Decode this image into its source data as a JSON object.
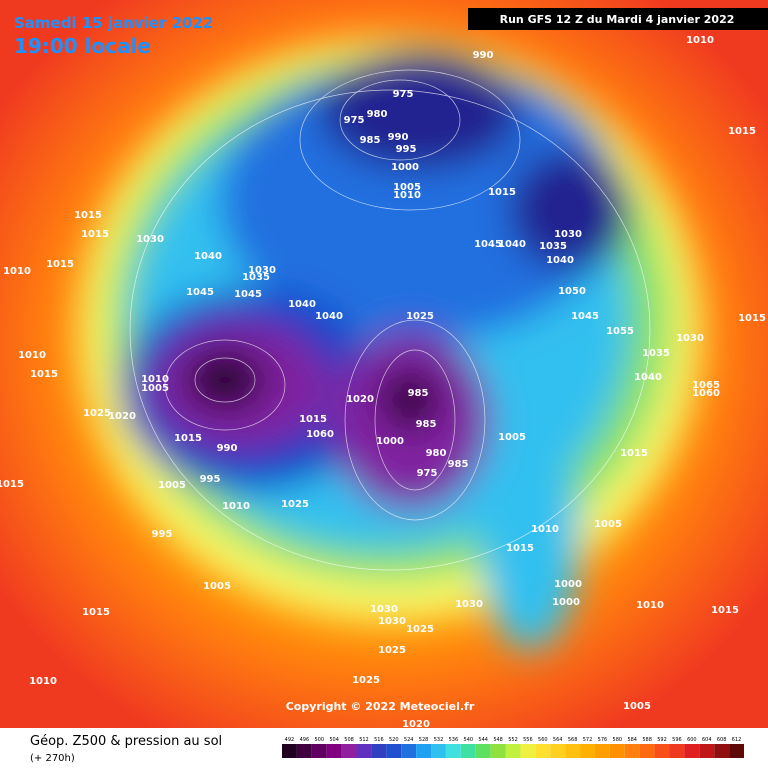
{
  "header": {
    "date": "Samedi 15 janvier 2022",
    "time": "19:00 locale",
    "run": "Run GFS 12 Z du Mardi 4 janvier 2022"
  },
  "footer": {
    "title": "Géop. Z500 & pression au sol",
    "lead": "(+ 270h)",
    "copyright": "Copyright © 2022 Meteociel.fr"
  },
  "map": {
    "pressure_labels": [
      "990",
      "1010",
      "975",
      "980",
      "975",
      "985",
      "990",
      "995",
      "1000",
      "1005",
      "1010",
      "1015",
      "1015",
      "1015",
      "1015",
      "1030",
      "1010",
      "1015",
      "1040",
      "1030",
      "1035",
      "1045",
      "1040",
      "1035",
      "1030",
      "1040",
      "1045",
      "1045",
      "1040",
      "1040",
      "1050",
      "1025",
      "1045",
      "1055",
      "1030",
      "1015",
      "1035",
      "1010",
      "1015",
      "1010",
      "1005",
      "985",
      "1020",
      "1040",
      "1065",
      "1060",
      "1025",
      "1020",
      "1015",
      "1060",
      "985",
      "1000",
      "1005",
      "1015",
      "990",
      "980",
      "985",
      "975",
      "1015",
      "1005",
      "995",
      "1015",
      "1010",
      "1025",
      "1010",
      "995",
      "1005",
      "1015",
      "1000",
      "1000",
      "1005",
      "1030",
      "1030",
      "1015",
      "1030",
      "1025",
      "1010",
      "1015",
      "1025",
      "1010",
      "1025",
      "1005",
      "1020"
    ]
  },
  "colorbar": {
    "ticks": [
      492,
      496,
      500,
      504,
      508,
      512,
      516,
      520,
      524,
      528,
      532,
      536,
      540,
      544,
      548,
      552,
      556,
      560,
      564,
      568,
      572,
      576,
      580,
      584,
      588,
      592,
      596,
      600,
      604,
      608,
      612
    ]
  }
}
